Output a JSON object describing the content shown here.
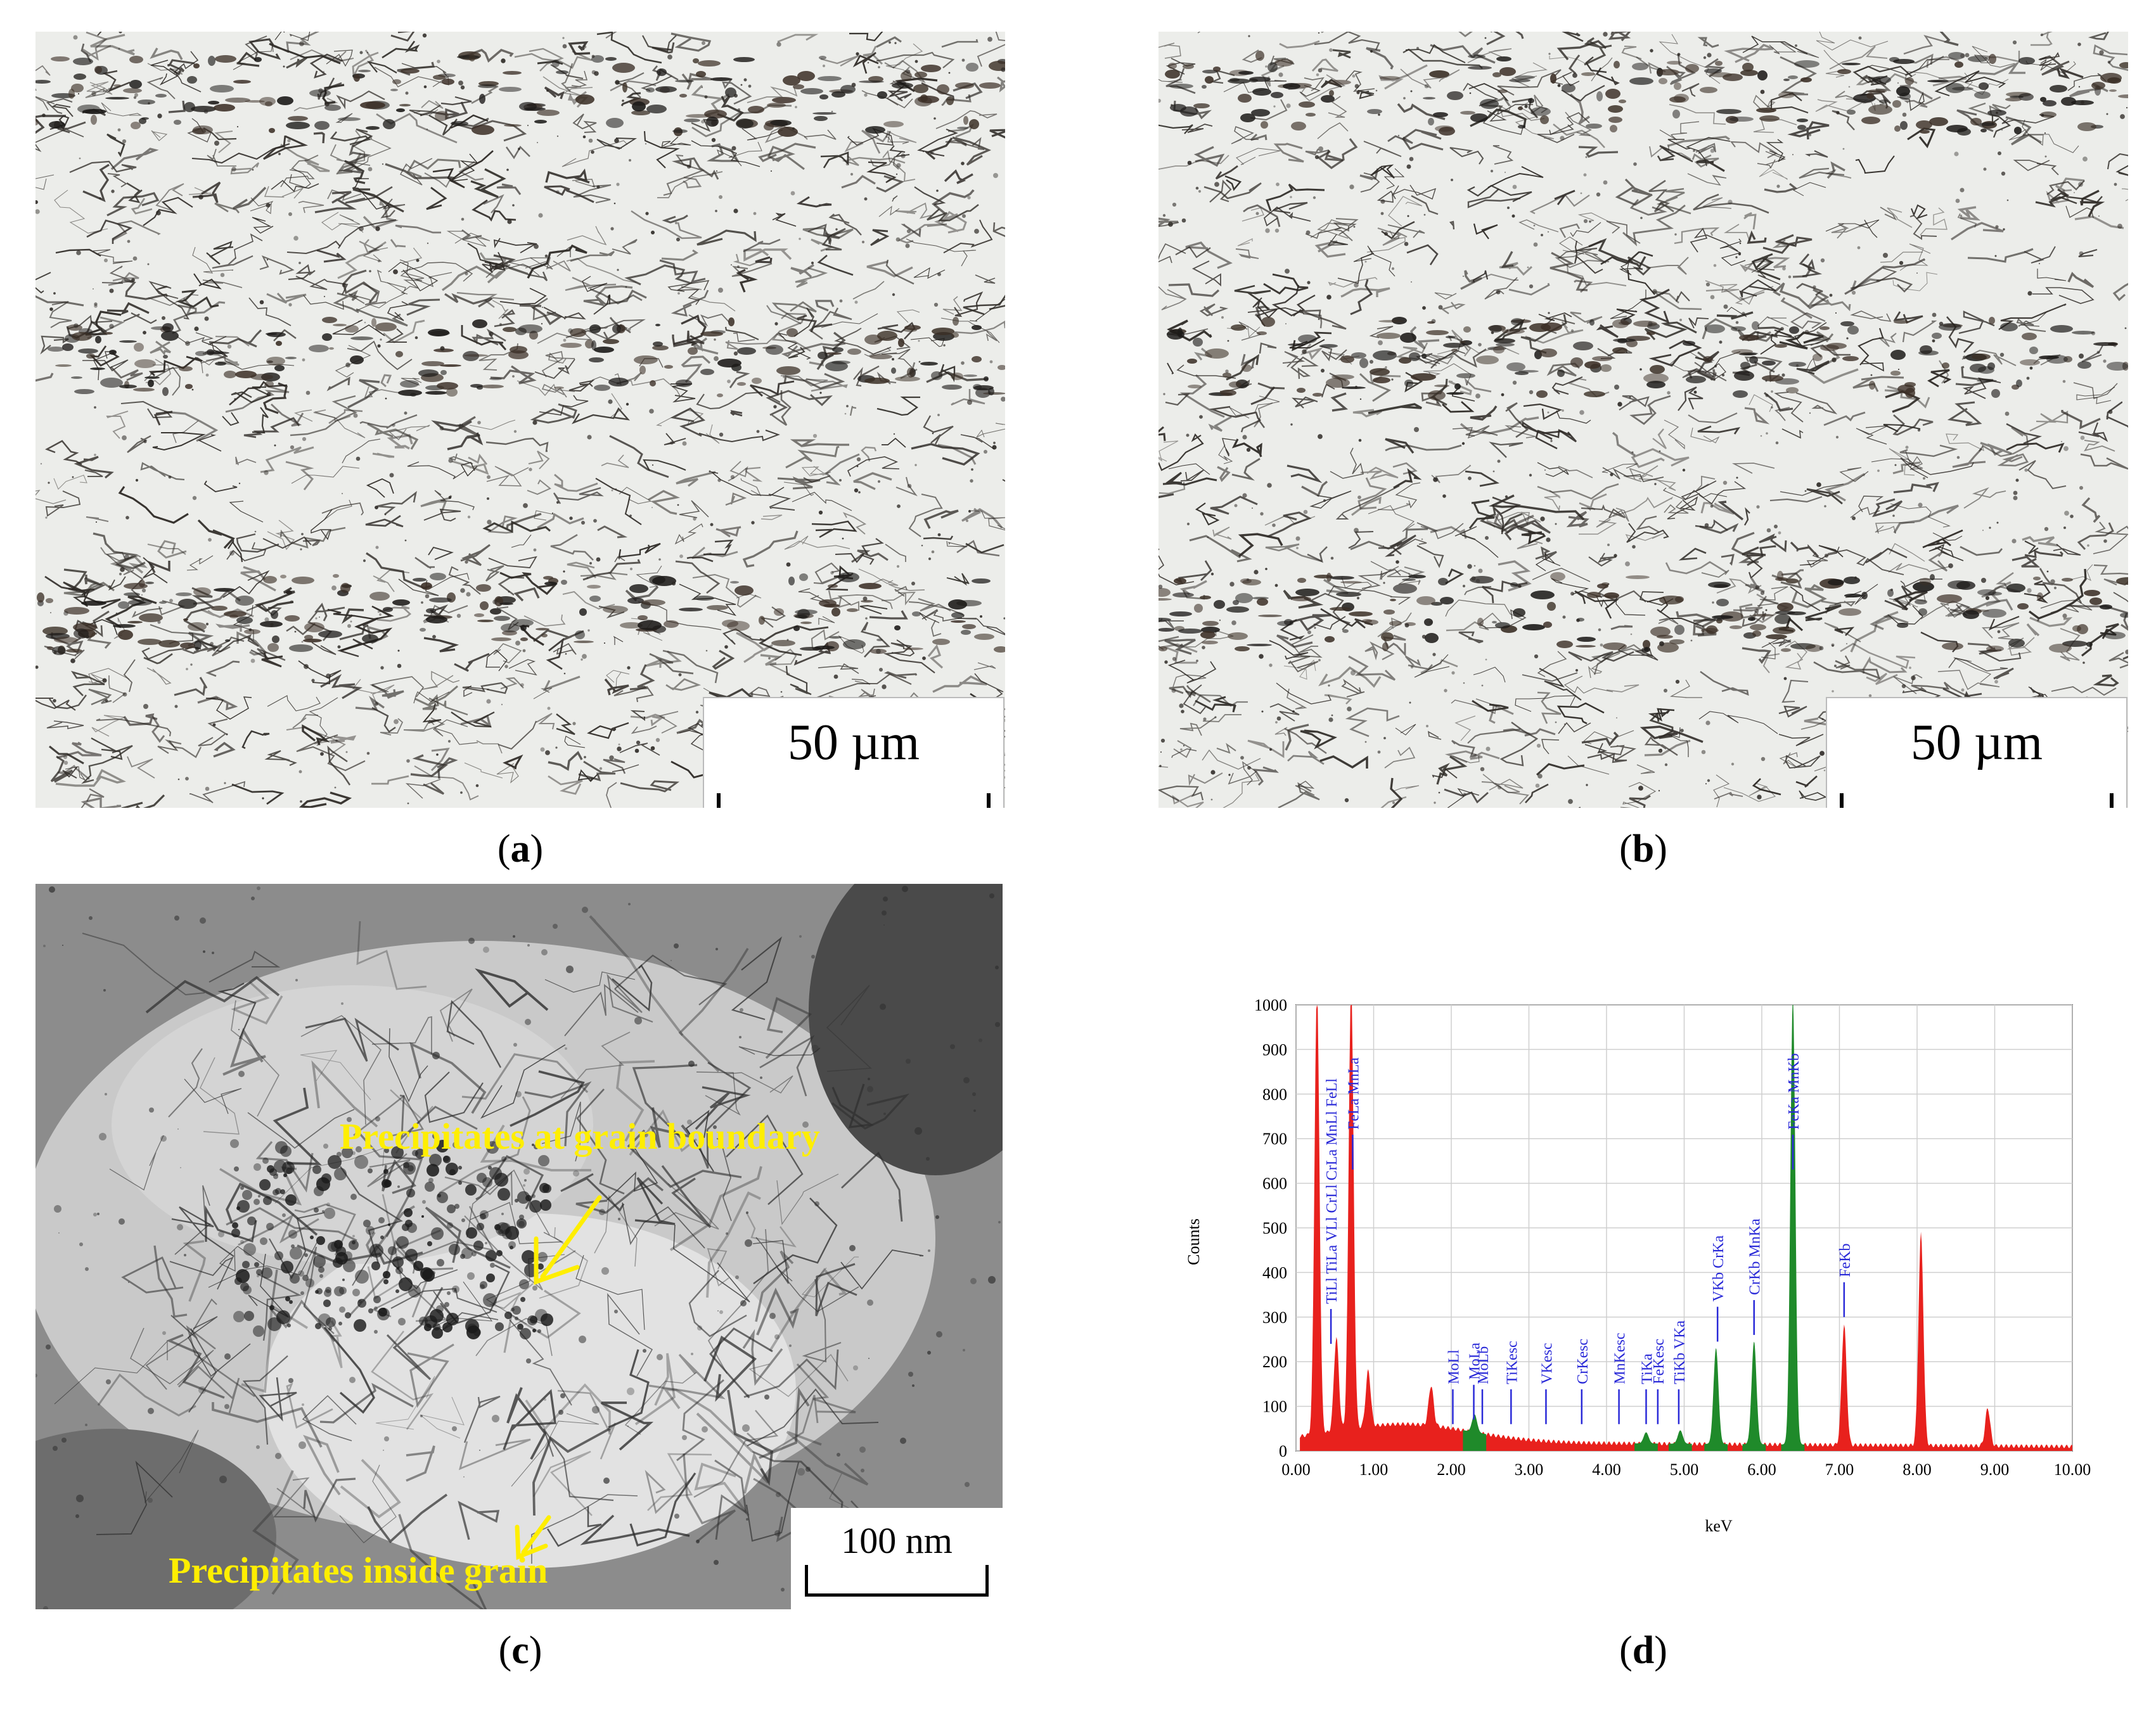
{
  "panels": {
    "a": {
      "caption_letter": "a",
      "scale_label": "50 µm"
    },
    "b": {
      "caption_letter": "b",
      "scale_label": "50 µm"
    },
    "c": {
      "caption_letter": "c",
      "scale_label": "100 nm",
      "annotation_boundary": "Precipitates at grain boundary",
      "annotation_inside": "Precipitates inside grain",
      "annotation_color": "#ffee00"
    },
    "d": {
      "caption_letter": "d"
    }
  },
  "chart_data": {
    "type": "area",
    "xlabel": "keV",
    "ylabel": "Counts",
    "xlim": [
      0,
      10
    ],
    "ylim": [
      0,
      1000
    ],
    "xticks": [
      "0.00",
      "1.00",
      "2.00",
      "3.00",
      "4.00",
      "5.00",
      "6.00",
      "7.00",
      "8.00",
      "9.00",
      "10.00"
    ],
    "yticks": [
      "0",
      "100",
      "200",
      "300",
      "400",
      "500",
      "600",
      "700",
      "800",
      "900",
      "1000"
    ],
    "grid": true,
    "colors": {
      "spectrum": "#e8211d",
      "identified": "#1f8a2a",
      "markers": "#2a2ad8"
    },
    "peaks": [
      {
        "keV": 0.27,
        "counts": 1000,
        "color": "red"
      },
      {
        "keV": 0.52,
        "counts": 210,
        "color": "red"
      },
      {
        "keV": 0.71,
        "counts": 1000,
        "color": "red"
      },
      {
        "keV": 0.93,
        "counts": 125,
        "color": "red"
      },
      {
        "keV": 1.74,
        "counts": 90,
        "color": "red"
      },
      {
        "keV": 2.3,
        "counts": 40,
        "color": "green"
      },
      {
        "keV": 4.51,
        "counts": 25,
        "color": "green"
      },
      {
        "keV": 4.95,
        "counts": 30,
        "color": "green"
      },
      {
        "keV": 5.41,
        "counts": 215,
        "color": "green"
      },
      {
        "keV": 5.9,
        "counts": 230,
        "color": "green"
      },
      {
        "keV": 6.4,
        "counts": 1000,
        "color": "green"
      },
      {
        "keV": 7.06,
        "counts": 270,
        "color": "red"
      },
      {
        "keV": 8.05,
        "counts": 475,
        "color": "red"
      },
      {
        "keV": 8.91,
        "counts": 85,
        "color": "red"
      }
    ],
    "markers": [
      {
        "keV": 0.45,
        "label": "TiLl TiLa VLl CrLl CrLa MnLl FeLl"
      },
      {
        "keV": 0.73,
        "label": "FeLa MnLa"
      },
      {
        "keV": 2.02,
        "label": "MoLl"
      },
      {
        "keV": 2.29,
        "label": "MoLa"
      },
      {
        "keV": 2.4,
        "label": "MoLb"
      },
      {
        "keV": 2.77,
        "label": "TiKesc"
      },
      {
        "keV": 3.22,
        "label": "VKesc"
      },
      {
        "keV": 3.68,
        "label": "CrKesc"
      },
      {
        "keV": 4.16,
        "label": "MnKesc"
      },
      {
        "keV": 4.51,
        "label": "TiKa"
      },
      {
        "keV": 4.66,
        "label": "FeKesc"
      },
      {
        "keV": 4.93,
        "label": "TiKb VKa"
      },
      {
        "keV": 5.43,
        "label": "VKb CrKa"
      },
      {
        "keV": 5.9,
        "label": "CrKb MnKa"
      },
      {
        "keV": 6.4,
        "label": "FeKa MnKb"
      },
      {
        "keV": 7.06,
        "label": "FeKb"
      }
    ]
  }
}
